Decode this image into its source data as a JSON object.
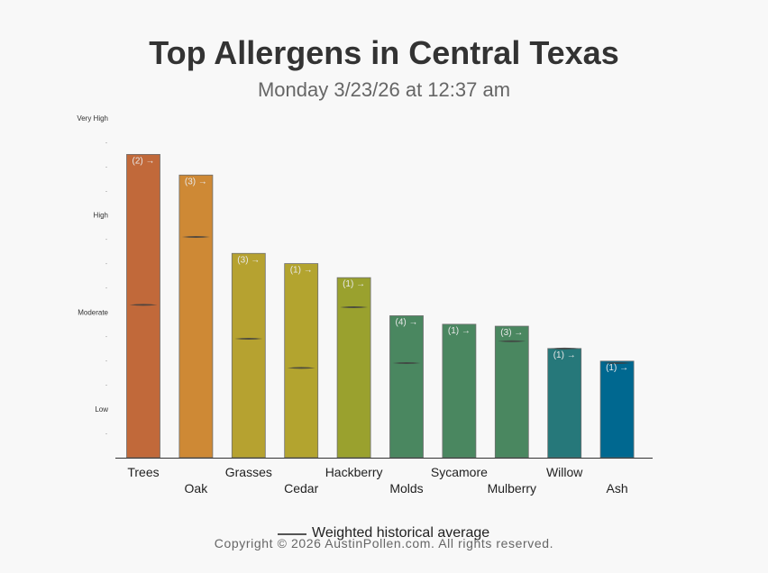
{
  "chart_data": {
    "type": "bar",
    "title": "Top Allergens in Central Texas",
    "subtitle": "Monday 3/23/26 at 12:37 am",
    "y_levels": [
      "Low",
      "Moderate",
      "High",
      "Very High"
    ],
    "y_scale": {
      "min": 0,
      "max": 14,
      "level_values": [
        2,
        6,
        10,
        14
      ],
      "minor_tick": "-"
    },
    "categories": [
      "Trees",
      "Oak",
      "Grasses",
      "Cedar",
      "Hackberry",
      "Molds",
      "Sycamore",
      "Mulberry",
      "Willow",
      "Ash"
    ],
    "values": [
      12.5,
      11.65,
      8.42,
      8.0,
      7.42,
      5.85,
      5.5,
      5.42,
      4.5,
      3.98
    ],
    "historical_average": [
      6.3,
      9.1,
      4.9,
      3.7,
      6.2,
      3.9,
      null,
      4.8,
      4.5,
      3.9
    ],
    "counts": [
      "(2) →",
      "(3) →",
      "(3) →",
      "(1) →",
      "(1) →",
      "(4) →",
      "(1) →",
      "(3) →",
      "(1) →",
      "(1) →"
    ],
    "colors": [
      "#c1693a",
      "#ce8935",
      "#b6a230",
      "#b3a42f",
      "#9aa12e",
      "#4a8760",
      "#4a8760",
      "#4a8760",
      "#26787a",
      "#006890"
    ],
    "legend_label": "Weighted historical average",
    "legend": "bottom-center",
    "grid": false
  },
  "footer": {
    "copyright": "Copyright © 2026 AustinPollen.com.  All rights reserved."
  }
}
